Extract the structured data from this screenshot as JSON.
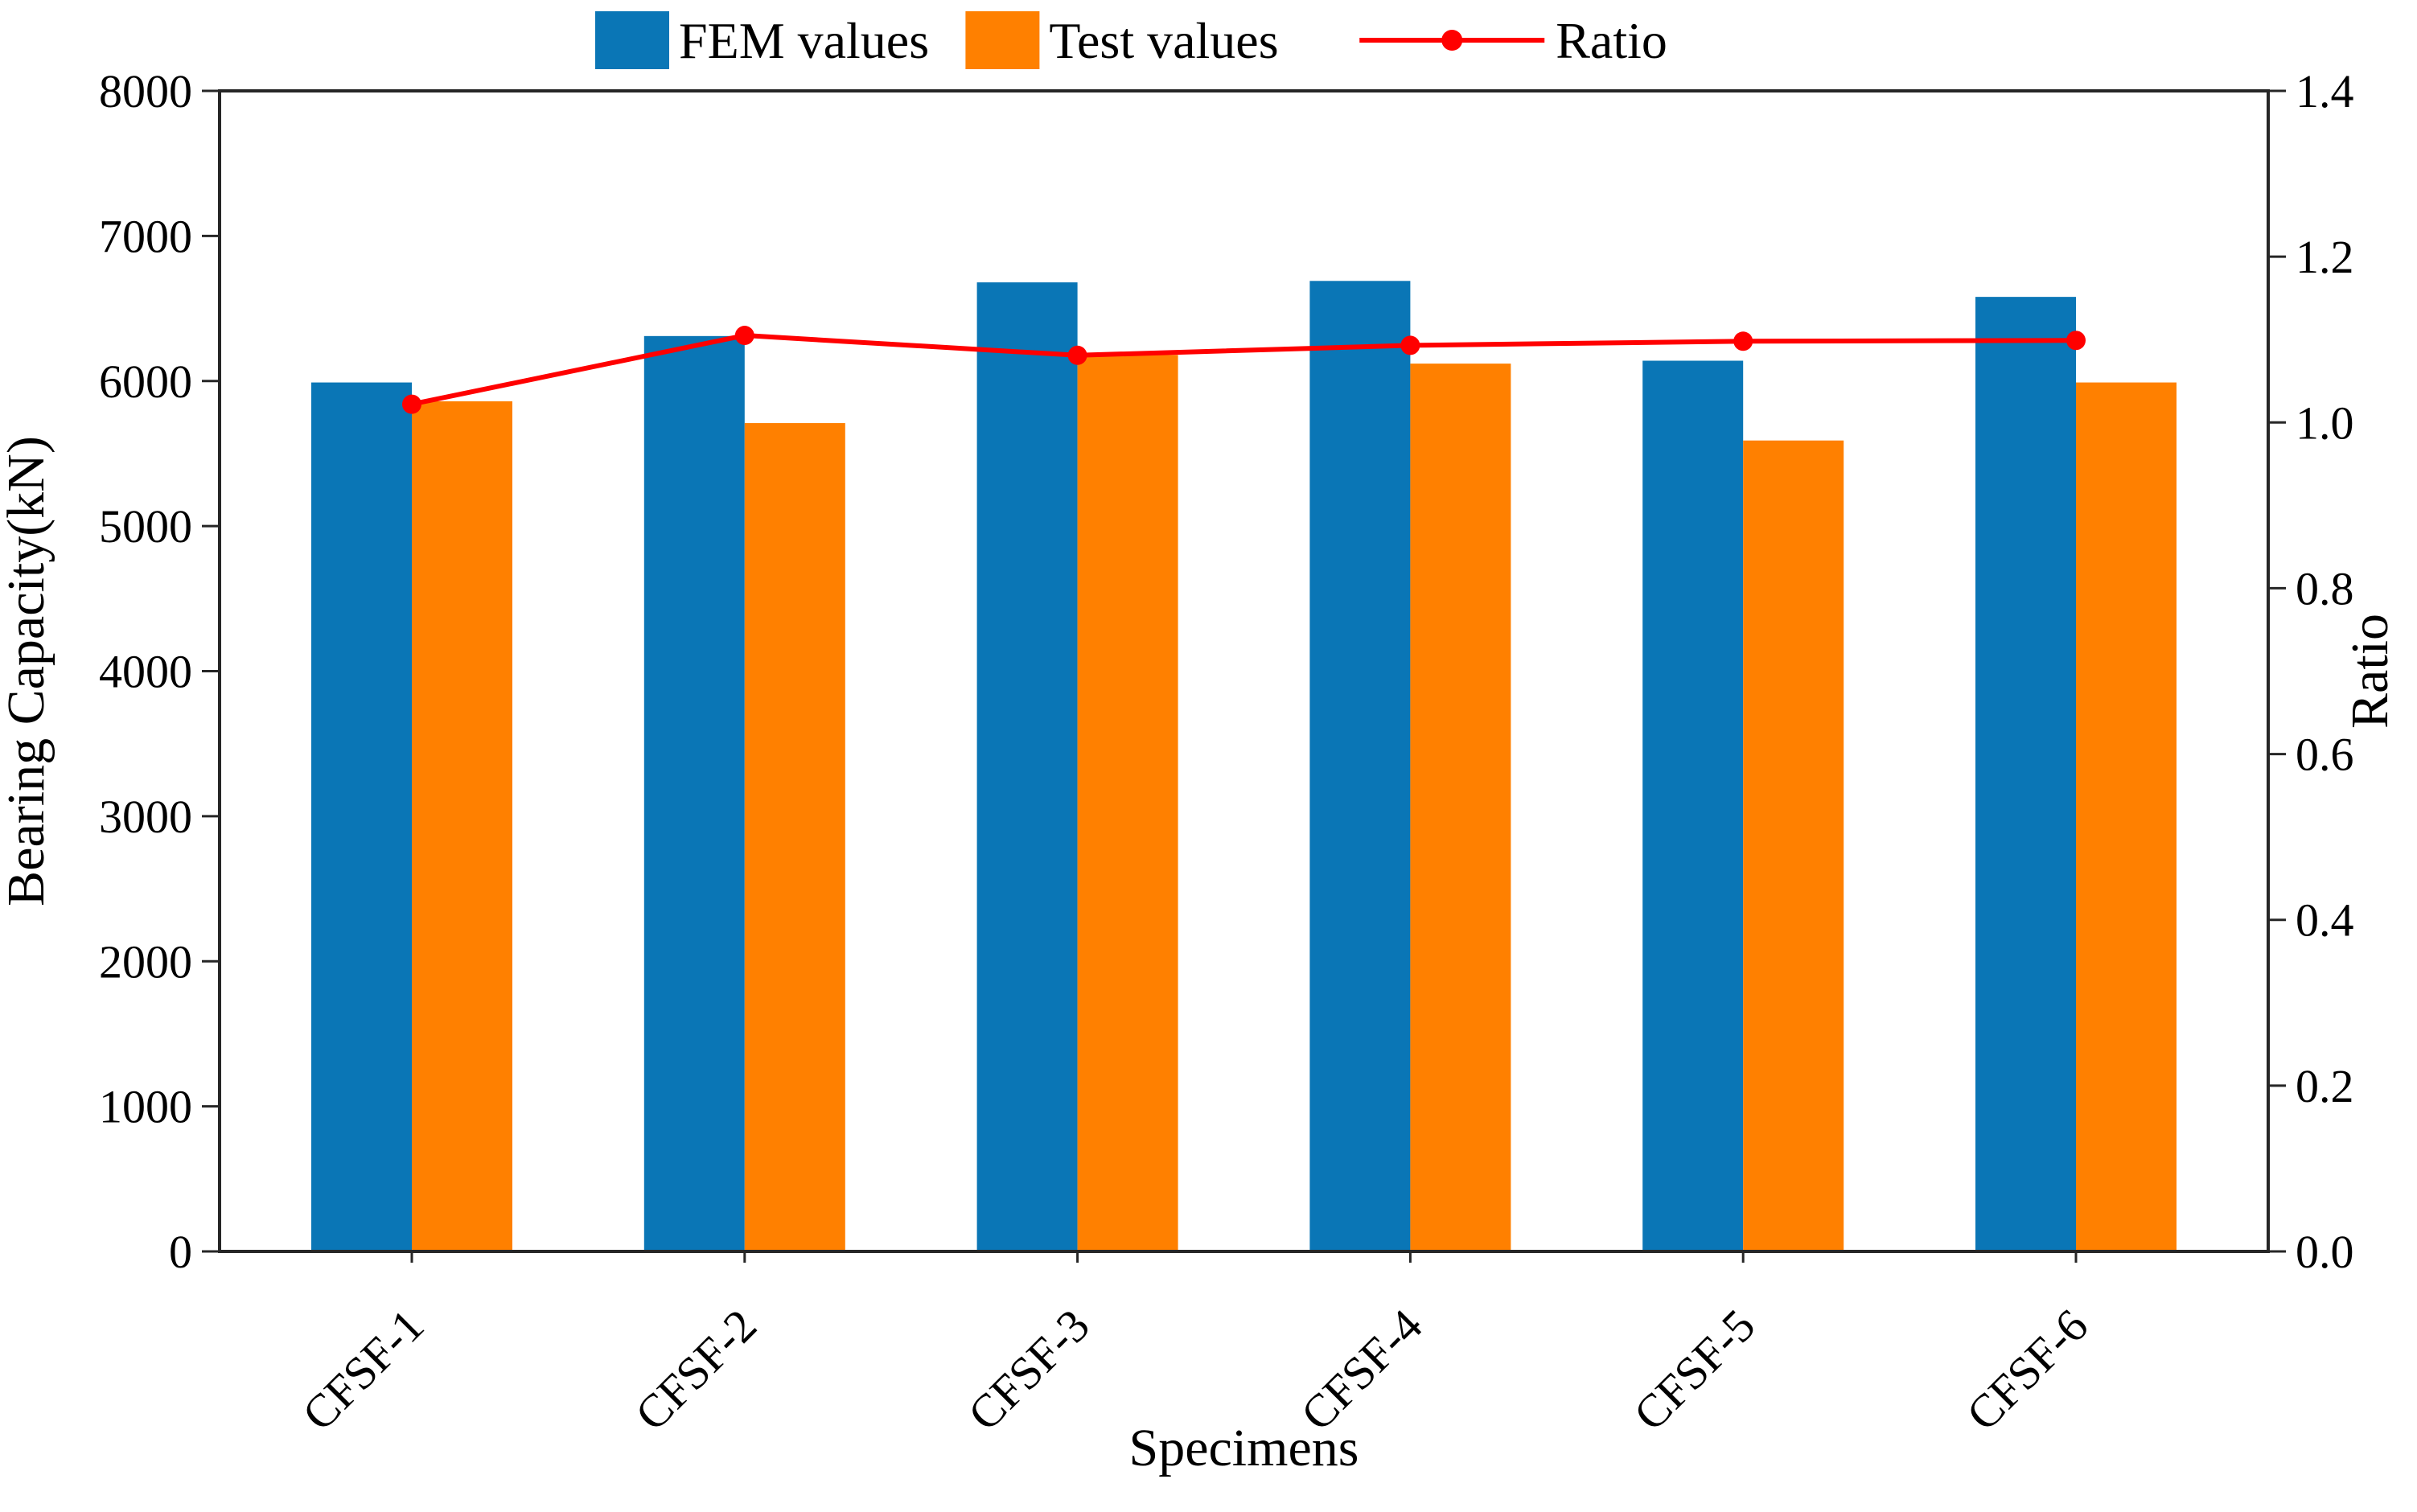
{
  "figure": {
    "background": "#ffffff",
    "frame_color": "#262626",
    "xlabel": "Specimens",
    "ylabel_left": "Bearing Capacity(kN)",
    "ylabel_right": "Ratio"
  },
  "legend": {
    "position": "top-center",
    "items": [
      "FEM values",
      "Test values",
      "Ratio"
    ]
  },
  "chart_data": {
    "type": "bar",
    "subtype": "grouped-bars-with-ratio-line",
    "title": "",
    "xlabel": "Specimens",
    "ylabel_left": "Bearing Capacity(kN)",
    "ylabel_right": "Ratio",
    "categories": [
      "CFSF-1",
      "CFSF-2",
      "CFSF-3",
      "CFSF-4",
      "CFSF-5",
      "CFSF-6"
    ],
    "series": [
      {
        "name": "FEM values",
        "type": "bar",
        "axis": "left",
        "color": "#0a76b6",
        "values": [
          5990,
          6310,
          6680,
          6690,
          6140,
          6580
        ]
      },
      {
        "name": "Test values",
        "type": "bar",
        "axis": "left",
        "color": "#ff8000",
        "values": [
          5860,
          5710,
          6180,
          6120,
          5590,
          5990
        ]
      },
      {
        "name": "Ratio",
        "type": "line",
        "axis": "right",
        "color": "#ff0000",
        "marker": "circle",
        "values": [
          1.022,
          1.105,
          1.081,
          1.093,
          1.098,
          1.099
        ]
      }
    ],
    "ylim_left": [
      0,
      8000
    ],
    "ylim_right": [
      0.0,
      1.4
    ],
    "yticks_left": [
      "0",
      "1000",
      "2000",
      "3000",
      "4000",
      "5000",
      "6000",
      "7000",
      "8000"
    ],
    "yticks_right": [
      "0.0",
      "0.2",
      "0.4",
      "0.6",
      "0.8",
      "1.0",
      "1.2",
      "1.4"
    ],
    "grid": false,
    "legend_position": "top"
  }
}
